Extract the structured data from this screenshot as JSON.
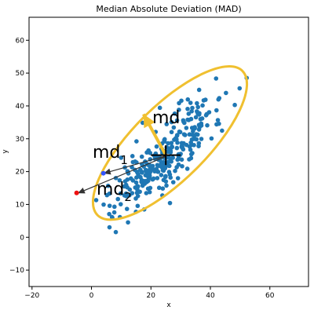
{
  "chart_data": {
    "type": "scatter",
    "title": "Median Absolute Deviation (MAD)",
    "xlabel": "x",
    "ylabel": "y",
    "xlim": [
      -21,
      73
    ],
    "ylim": [
      -15,
      67
    ],
    "xticks": [
      -20,
      0,
      20,
      40,
      60
    ],
    "yticks": [
      -10,
      0,
      10,
      20,
      30,
      40,
      50,
      60
    ],
    "grid": false,
    "colors": {
      "points": "#1f77b4",
      "ellipse": "#f0c030",
      "md_arrow": "#f0c030",
      "outlier_red": "#ee1111",
      "outlier_blue": "#3355ff",
      "arrows": "#333333"
    },
    "cluster": {
      "center": [
        25,
        25
      ],
      "count": 300,
      "random_seed": 7
    },
    "ellipse": {
      "center": [
        26.4,
        28.7
      ],
      "semi_major": 32.8,
      "semi_minor": 11.7,
      "angle_deg": 42
    },
    "md_vector": {
      "from": [
        25,
        25
      ],
      "to": [
        17.5,
        37.5
      ],
      "label": "md"
    },
    "crosshair": {
      "center": [
        25,
        25
      ],
      "horizontal": [
        20,
        30
      ],
      "vertical": [
        22,
        28
      ]
    },
    "outliers": [
      {
        "x": 4,
        "y": 19.5,
        "color": "#3355ff",
        "label": "md",
        "subscript": "1"
      },
      {
        "x": -5,
        "y": 13.5,
        "color": "#ee1111",
        "label": "md",
        "subscript": "2"
      }
    ],
    "arrows": [
      {
        "from": [
          25,
          24.8
        ],
        "to": [
          4.3,
          19.5
        ]
      },
      {
        "from": [
          25,
          24.6
        ],
        "to": [
          -4.4,
          13.5
        ]
      }
    ]
  }
}
